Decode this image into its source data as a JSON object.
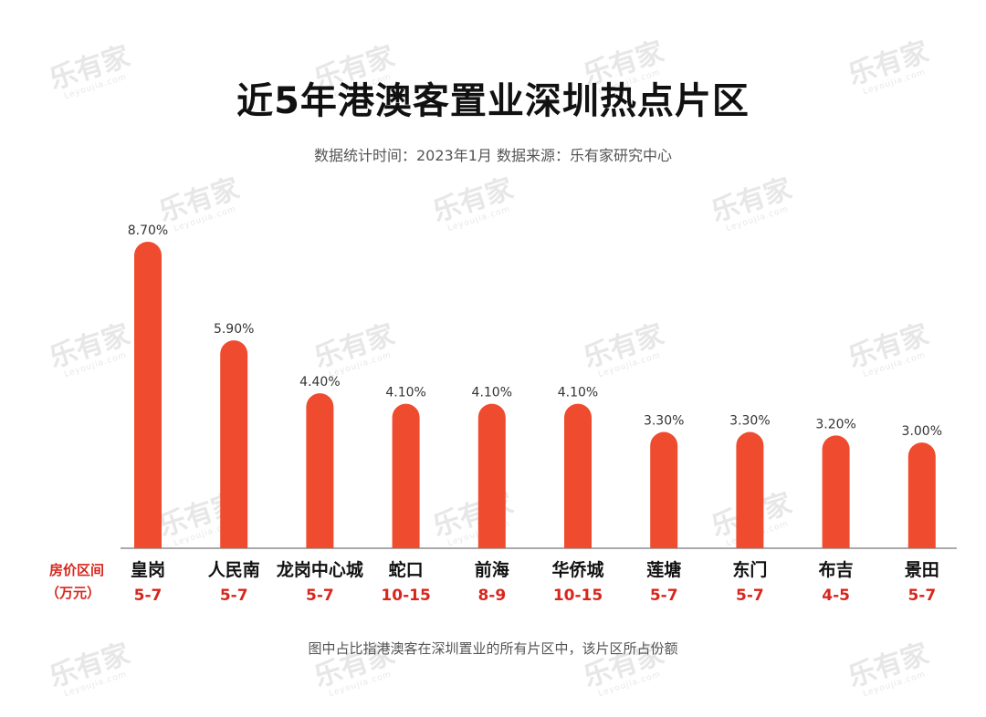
{
  "title": "近5年港澳客置业深圳热点片区",
  "subtitle": "数据统计时间：2023年1月  数据来源：乐有家研究中心",
  "footnote": "图中占比指港澳客在深圳置业的所有片区中，该片区所占份额",
  "watermark": {
    "main": "乐有家",
    "sub": "Leyoujia.com"
  },
  "colors": {
    "bar": "#ef4b2e",
    "price": "#d8261c",
    "category": "#111111",
    "value": "#333333",
    "baseline": "#555555"
  },
  "chart_data": {
    "type": "bar",
    "categories": [
      "皇岗",
      "人民南",
      "龙岗中心城",
      "蛇口",
      "前海",
      "华侨城",
      "莲塘",
      "东门",
      "布吉",
      "景田"
    ],
    "values": [
      8.7,
      5.9,
      4.4,
      4.1,
      4.1,
      4.1,
      3.3,
      3.3,
      3.2,
      3.0
    ],
    "value_labels": [
      "8.70%",
      "5.90%",
      "4.40%",
      "4.10%",
      "4.10%",
      "4.10%",
      "3.30%",
      "3.30%",
      "3.20%",
      "3.00%"
    ],
    "price_ranges": [
      "5-7",
      "5-7",
      "5-7",
      "10-15",
      "8-9",
      "10-15",
      "5-7",
      "5-7",
      "4-5",
      "5-7"
    ],
    "row_label": [
      "房价区间",
      "（万元）"
    ],
    "ylim": [
      0,
      8.7
    ],
    "grid": false,
    "legend": "none"
  }
}
